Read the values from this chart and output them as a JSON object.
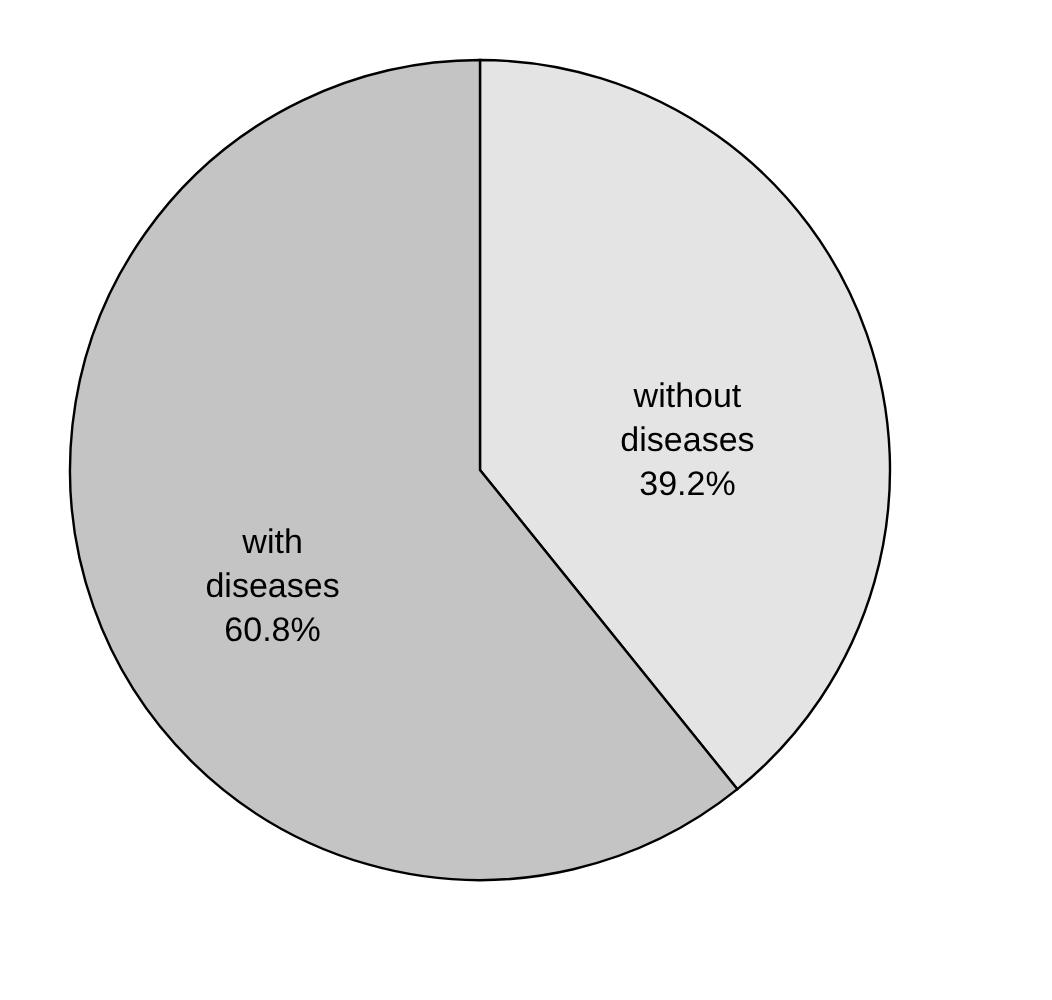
{
  "chart_data": {
    "type": "pie",
    "categories": [
      "without diseases",
      "with diseases"
    ],
    "values": [
      39.2,
      60.8
    ],
    "colors": [
      "#e4e4e4",
      "#c4c4c4"
    ],
    "value_labels": [
      "39.2%",
      "60.8%"
    ],
    "legend": false
  }
}
